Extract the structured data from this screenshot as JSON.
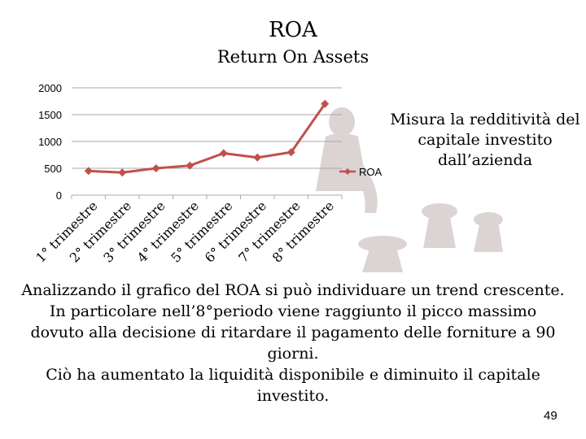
{
  "slide": {
    "title": "ROA",
    "subtitle": "Return On Assets",
    "side_note": "Misura la redditività del capitale investito dall’azienda",
    "body_lines": [
      "Analizzando il grafico del ROA si può individuare un trend crescente.",
      "In particolare nell’8°periodo viene raggiunto il picco massimo",
      "dovuto alla decisione di ritardare il pagamento delle forniture a 90",
      "giorni.",
      "Ciò ha aumentato la liquidità disponibile e diminuito il capitale",
      "investito."
    ],
    "page_number": "49"
  },
  "colors": {
    "series": "#c0504d",
    "background_art": "#d8cfcf",
    "grid": "#aaaaaa"
  },
  "chart_data": {
    "type": "line",
    "title": "",
    "xlabel": "",
    "ylabel": "",
    "categories": [
      "1° trimestre",
      "2° trimestre",
      "3° trimestre",
      "4° trimestre",
      "5° trimestre",
      "6° trimestre",
      "7° trimestre",
      "8° trimestre"
    ],
    "series": [
      {
        "name": "ROA",
        "values": [
          450,
          420,
          500,
          550,
          780,
          700,
          800,
          1700
        ]
      }
    ],
    "yticks": [
      "0",
      "500",
      "1000",
      "1500",
      "2000"
    ],
    "ylim": [
      0,
      2000
    ],
    "grid": true,
    "legend_position": "right",
    "marker": "diamond"
  }
}
